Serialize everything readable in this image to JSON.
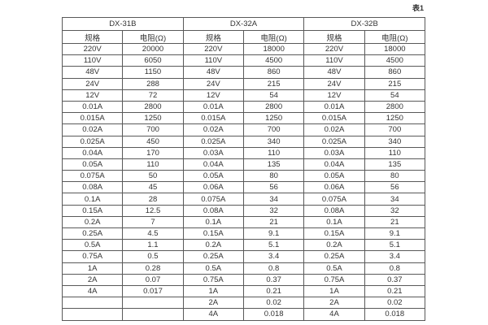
{
  "caption": "表1",
  "colors": {
    "background": "#ffffff",
    "border": "#595959",
    "text": "#333333"
  },
  "table": {
    "groups": [
      {
        "name": "DX-31B",
        "headers": [
          "规格",
          "电阻(Ω)"
        ],
        "rows": [
          [
            "220V",
            "20000"
          ],
          [
            "110V",
            "6050"
          ],
          [
            "48V",
            "1150"
          ],
          [
            "24V",
            "288"
          ],
          [
            "12V",
            "72"
          ],
          [
            "0.01A",
            "2800"
          ],
          [
            "0.015A",
            "1250"
          ],
          [
            "0.02A",
            "700"
          ],
          [
            "0.025A",
            "450"
          ],
          [
            "0.04A",
            "170"
          ],
          [
            "0.05A",
            "110"
          ],
          [
            "0.075A",
            "50"
          ],
          [
            "0.08A",
            "45"
          ],
          [
            "0.1A",
            "28"
          ],
          [
            "0.15A",
            "12.5"
          ],
          [
            "0.2A",
            "7"
          ],
          [
            "0.25A",
            "4.5"
          ],
          [
            "0.5A",
            "1.1"
          ],
          [
            "0.75A",
            "0.5"
          ],
          [
            "1A",
            "0.28"
          ],
          [
            "2A",
            "0.07"
          ],
          [
            "4A",
            "0.017"
          ],
          [
            "",
            ""
          ],
          [
            "",
            ""
          ]
        ]
      },
      {
        "name": "DX-32A",
        "headers": [
          "规格",
          "电阻(Ω)"
        ],
        "rows": [
          [
            "220V",
            "18000"
          ],
          [
            "110V",
            "4500"
          ],
          [
            "48V",
            "860"
          ],
          [
            "24V",
            "215"
          ],
          [
            "12V",
            "54"
          ],
          [
            "0.01A",
            "2800"
          ],
          [
            "0.015A",
            "1250"
          ],
          [
            "0.02A",
            "700"
          ],
          [
            "0.025A",
            "340"
          ],
          [
            "0.03A",
            "110"
          ],
          [
            "0.04A",
            "135"
          ],
          [
            "0.05A",
            "80"
          ],
          [
            "0.06A",
            "56"
          ],
          [
            "0.075A",
            "34"
          ],
          [
            "0.08A",
            "32"
          ],
          [
            "0.1A",
            "21"
          ],
          [
            "0.15A",
            "9.1"
          ],
          [
            "0.2A",
            "5.1"
          ],
          [
            "0.25A",
            "3.4"
          ],
          [
            "0.5A",
            "0.8"
          ],
          [
            "0.75A",
            "0.37"
          ],
          [
            "1A",
            "0.21"
          ],
          [
            "2A",
            "0.02"
          ],
          [
            "4A",
            "0.018"
          ]
        ]
      },
      {
        "name": "DX-32B",
        "headers": [
          "规格",
          "电阻(Ω)"
        ],
        "rows": [
          [
            "220V",
            "18000"
          ],
          [
            "110V",
            "4500"
          ],
          [
            "48V",
            "860"
          ],
          [
            "24V",
            "215"
          ],
          [
            "12V",
            "54"
          ],
          [
            "0.01A",
            "2800"
          ],
          [
            "0.015A",
            "1250"
          ],
          [
            "0.02A",
            "700"
          ],
          [
            "0.025A",
            "340"
          ],
          [
            "0.03A",
            "110"
          ],
          [
            "0.04A",
            "135"
          ],
          [
            "0.05A",
            "80"
          ],
          [
            "0.06A",
            "56"
          ],
          [
            "0.075A",
            "34"
          ],
          [
            "0.08A",
            "32"
          ],
          [
            "0.1A",
            "21"
          ],
          [
            "0.15A",
            "9.1"
          ],
          [
            "0.2A",
            "5.1"
          ],
          [
            "0.25A",
            "3.4"
          ],
          [
            "0.5A",
            "0.8"
          ],
          [
            "0.75A",
            "0.37"
          ],
          [
            "1A",
            "0.21"
          ],
          [
            "2A",
            "0.02"
          ],
          [
            "4A",
            "0.018"
          ]
        ]
      }
    ]
  }
}
